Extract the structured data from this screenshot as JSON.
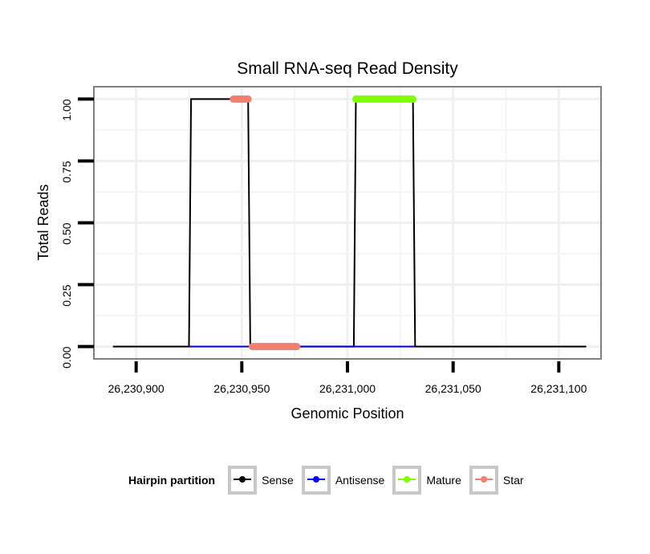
{
  "chart_data": {
    "type": "line",
    "title": "Small RNA-seq Read Density",
    "xlabel": "Genomic Position",
    "ylabel": "Total Reads",
    "xlim": [
      26230880,
      26231120
    ],
    "ylim": [
      -0.05,
      1.05
    ],
    "x_ticks": [
      26230900,
      26230950,
      26231000,
      26231050,
      26231100
    ],
    "x_tick_labels": [
      "26,230,900",
      "26,230,950",
      "26,231,000",
      "26,231,050",
      "26,231,100"
    ],
    "y_ticks": [
      0,
      0.25,
      0.5,
      0.75,
      1
    ],
    "y_tick_labels": [
      "0.00",
      "0.25",
      "0.50",
      "0.75",
      "1.00"
    ],
    "grid": true,
    "legend_position": "bottom",
    "legend_title": "Hairpin partition",
    "series": [
      {
        "name": "Sense",
        "color": "#000000",
        "style": "line",
        "points": [
          [
            26230889,
            0
          ],
          [
            26230925,
            0
          ],
          [
            26230926,
            1
          ],
          [
            26230953,
            1
          ],
          [
            26230954,
            0
          ],
          [
            26231003,
            0
          ],
          [
            26231004,
            1
          ],
          [
            26231031,
            1
          ],
          [
            26231032,
            0
          ],
          [
            26231113,
            0
          ]
        ]
      },
      {
        "name": "Antisense",
        "color": "#0000ff",
        "style": "line",
        "points": [
          [
            26230925,
            0
          ],
          [
            26230954,
            0
          ],
          [
            26231003,
            0
          ],
          [
            26231032,
            0
          ]
        ]
      },
      {
        "name": "Mature",
        "color": "#7fff00",
        "style": "thick",
        "segments": [
          {
            "x": [
              26231004,
              26231031
            ],
            "y": 1
          }
        ]
      },
      {
        "name": "Star",
        "color": "#f08070",
        "style": "thick",
        "segments": [
          {
            "x": [
              26230946,
              26230953
            ],
            "y": 1
          },
          {
            "x": [
              26230955,
              26230976
            ],
            "y": 0
          }
        ]
      }
    ]
  }
}
